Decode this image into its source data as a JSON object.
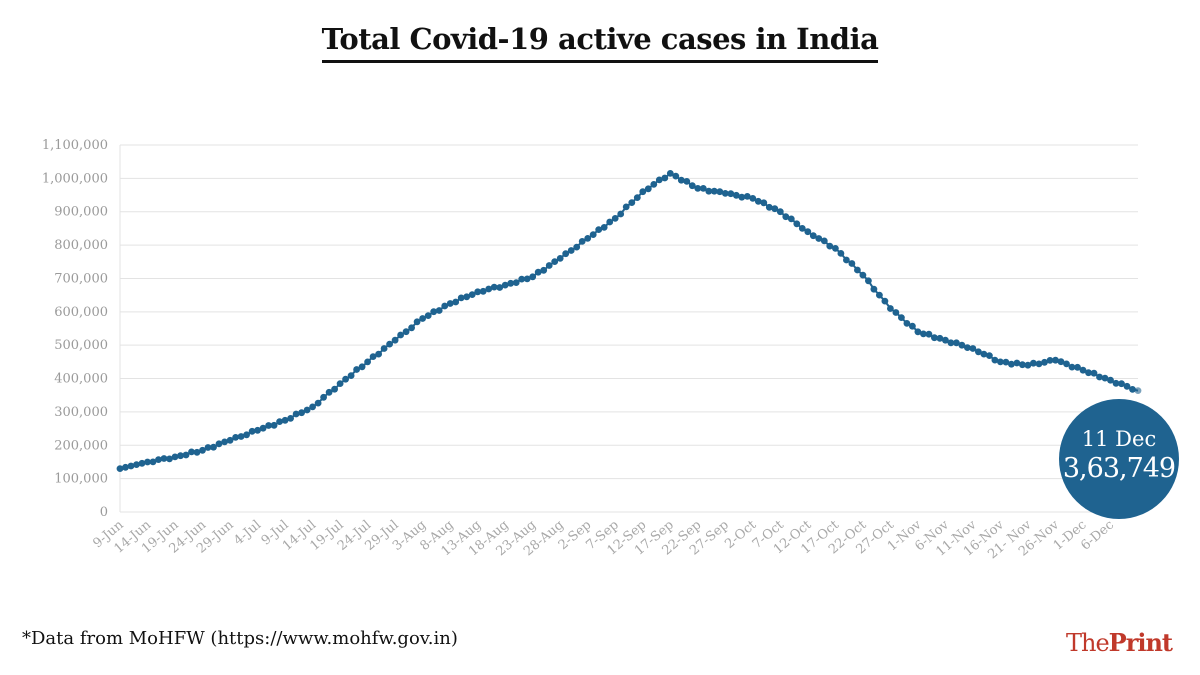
{
  "title": "Total Covid-19 active cases in India",
  "source": "*Data from MoHFW (https://www.mohfw.gov.in)",
  "logo": {
    "part1": "The",
    "part2": "Print"
  },
  "callout": {
    "date": "11 Dec",
    "value": "3,63,749"
  },
  "colors": {
    "series": "#1f6390",
    "grid": "#e3e3e3",
    "logo": "#c0392b"
  },
  "chart_data": {
    "type": "line",
    "title": "Total Covid-19 active cases in India",
    "xlabel": "",
    "ylabel": "",
    "ylim": [
      0,
      1100000
    ],
    "grid": true,
    "x_range": [
      "9-Jun",
      "11-Dec"
    ],
    "y_ticks": [
      0,
      100000,
      200000,
      300000,
      400000,
      500000,
      600000,
      700000,
      800000,
      900000,
      1000000,
      1100000
    ],
    "y_tick_labels": [
      "0",
      "100,000",
      "200,000",
      "300,000",
      "400,000",
      "500,000",
      "600,000",
      "700,000",
      "800,000",
      "900,000",
      "1,000,000",
      "1,100,000"
    ],
    "x_tick_labels": [
      "9-Jun",
      "14-Jun",
      "19-Jun",
      "24-Jun",
      "29-Jun",
      "4-Jul",
      "9-Jul",
      "14-Jul",
      "19-Jul",
      "24-Jul",
      "29-Jul",
      "3-Aug",
      "8-Aug",
      "13-Aug",
      "18-Aug",
      "23-Aug",
      "28-Aug",
      "2-Sep",
      "7-Sep",
      "12-Sep",
      "17-Sep",
      "22-Sep",
      "27-Sep",
      "2-Oct",
      "7-Oct",
      "12-Oct",
      "17-Oct",
      "22-Oct",
      "27-Oct",
      "1-Nov",
      "6-Nov",
      "11-Nov",
      "16-Nov",
      "21- Nov",
      "26-Nov",
      "1-Dec",
      "6-Dec"
    ],
    "series": [
      {
        "name": "",
        "anchors": [
          [
            "9-Jun",
            130000
          ],
          [
            "14-Jun",
            150000
          ],
          [
            "19-Jun",
            165000
          ],
          [
            "24-Jun",
            185000
          ],
          [
            "29-Jun",
            215000
          ],
          [
            "4-Jul",
            245000
          ],
          [
            "9-Jul",
            275000
          ],
          [
            "14-Jul",
            315000
          ],
          [
            "19-Jul",
            385000
          ],
          [
            "24-Jul",
            450000
          ],
          [
            "29-Jul",
            515000
          ],
          [
            "3-Aug",
            580000
          ],
          [
            "8-Aug",
            625000
          ],
          [
            "13-Aug",
            660000
          ],
          [
            "18-Aug",
            680000
          ],
          [
            "23-Aug",
            705000
          ],
          [
            "28-Aug",
            760000
          ],
          [
            "2-Sep",
            820000
          ],
          [
            "7-Sep",
            880000
          ],
          [
            "12-Sep",
            960000
          ],
          [
            "17-Sep",
            1015000
          ],
          [
            "22-Sep",
            970000
          ],
          [
            "27-Sep",
            955000
          ],
          [
            "2-Oct",
            940000
          ],
          [
            "7-Oct",
            900000
          ],
          [
            "12-Oct",
            840000
          ],
          [
            "17-Oct",
            790000
          ],
          [
            "22-Oct",
            710000
          ],
          [
            "27-Oct",
            610000
          ],
          [
            "1-Nov",
            540000
          ],
          [
            "6-Nov",
            515000
          ],
          [
            "11-Nov",
            490000
          ],
          [
            "16-Nov",
            450000
          ],
          [
            "21-Nov",
            440000
          ],
          [
            "26-Nov",
            455000
          ],
          [
            "1-Dec",
            425000
          ],
          [
            "6-Dec",
            395000
          ],
          [
            "11-Dec",
            363749
          ]
        ]
      }
    ]
  }
}
